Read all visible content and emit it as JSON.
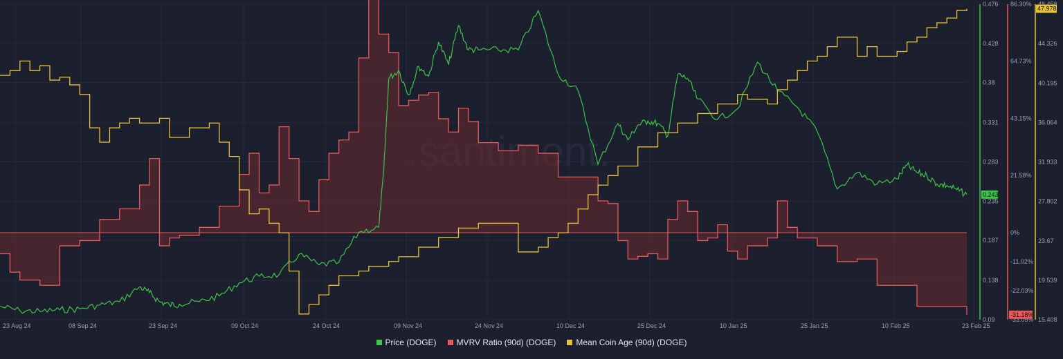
{
  "chart_data": {
    "type": "line",
    "watermark": ".santiment.",
    "x_ticks": [
      "23 Aug 24",
      "08 Sep 24",
      "23 Sep 24",
      "09 Oct 24",
      "24 Oct 24",
      "09 Nov 24",
      "24 Nov 24",
      "10 Dec 24",
      "25 Dec 24",
      "10 Jan 25",
      "25 Jan 25",
      "10 Feb 25",
      "23 Feb 25"
    ],
    "price_axis": {
      "ticks": [
        "0.476",
        "0.428",
        "0.38",
        "0.331",
        "0.283",
        "0.235",
        "0.187",
        "0.138",
        "0.09"
      ],
      "ylim": [
        0.09,
        0.476
      ],
      "current": "0.243",
      "color": "#3ec44a"
    },
    "mvrv_axis": {
      "ticks": [
        "86.30%",
        "64.73%",
        "43.15%",
        "21.58%",
        "0%",
        "-11.02%",
        "-22.03%",
        "-33.05%"
      ],
      "current": "-31.18%",
      "color": "#e85a5a"
    },
    "age_axis": {
      "ticks": [
        "48.458",
        "44.326",
        "40.195",
        "36.064",
        "31.933",
        "27.802",
        "23.67",
        "19.539",
        "15.408"
      ],
      "ylim": [
        15.408,
        48.458
      ],
      "current": "47.978",
      "color": "#e8c23a"
    },
    "series": [
      {
        "name": "Price (DOGE)",
        "color": "#3ec44a",
        "axis": "price",
        "x": [
          0,
          4,
          8,
          12,
          16,
          20,
          24,
          28,
          30,
          32,
          34,
          36,
          40,
          44,
          48,
          52,
          56,
          60,
          64,
          68,
          72,
          76,
          77,
          78,
          80,
          82,
          84,
          86,
          88,
          90,
          92,
          94,
          96,
          100,
          104,
          108,
          112,
          116,
          120,
          124,
          126,
          128,
          130,
          132,
          134,
          136,
          138,
          140,
          144,
          148,
          152,
          156,
          160,
          164,
          168,
          172,
          176,
          180,
          182,
          184,
          186,
          188,
          190,
          192,
          194
        ],
        "values": [
          0.106,
          0.101,
          0.1,
          0.102,
          0.103,
          0.108,
          0.112,
          0.13,
          0.123,
          0.112,
          0.108,
          0.109,
          0.112,
          0.119,
          0.135,
          0.143,
          0.145,
          0.17,
          0.157,
          0.16,
          0.197,
          0.203,
          0.272,
          0.385,
          0.395,
          0.365,
          0.4,
          0.388,
          0.43,
          0.402,
          0.45,
          0.42,
          0.42,
          0.42,
          0.42,
          0.468,
          0.39,
          0.37,
          0.28,
          0.33,
          0.31,
          0.328,
          0.333,
          0.33,
          0.315,
          0.39,
          0.385,
          0.36,
          0.335,
          0.348,
          0.405,
          0.37,
          0.35,
          0.32,
          0.25,
          0.27,
          0.256,
          0.262,
          0.279,
          0.27,
          0.266,
          0.256,
          0.254,
          0.249,
          0.243
        ]
      },
      {
        "name": "MVRV Ratio (90d) (DOGE)",
        "color": "#e85a5a",
        "axis": "mvrv",
        "x": [
          0,
          2,
          4,
          8,
          12,
          16,
          20,
          24,
          28,
          30,
          32,
          34,
          36,
          40,
          44,
          48,
          50,
          52,
          54,
          56,
          58,
          60,
          62,
          64,
          66,
          68,
          70,
          72,
          74,
          76,
          78,
          80,
          82,
          84,
          86,
          88,
          90,
          92,
          94,
          96,
          100,
          104,
          108,
          112,
          116,
          120,
          122,
          124,
          126,
          128,
          130,
          132,
          134,
          136,
          138,
          140,
          142,
          144,
          146,
          148,
          150,
          152,
          154,
          156,
          158,
          160,
          164,
          168,
          172,
          176,
          180,
          184,
          188,
          192,
          194
        ],
        "values": [
          -8,
          -15,
          -18,
          -20,
          -5,
          -3,
          5,
          9,
          18,
          28,
          -5,
          -2,
          -1,
          2,
          10,
          22,
          30,
          15,
          18,
          40,
          28,
          12,
          8,
          20,
          30,
          35,
          38,
          66,
          90,
          75,
          68,
          48,
          50,
          52,
          53,
          43,
          38,
          47,
          42,
          34,
          31,
          33,
          30,
          21,
          21,
          12,
          11,
          -3,
          -10,
          -9,
          -8,
          -10,
          5,
          12,
          8,
          -3,
          -2,
          3,
          -7,
          -10,
          -5,
          -5,
          -2,
          12,
          2,
          -2,
          -5,
          -11,
          -10,
          -20,
          -20,
          -28,
          -28,
          -28,
          -31.18
        ]
      },
      {
        "name": "Mean Coin Age (90d) (DOGE)",
        "color": "#e8c23a",
        "axis": "age",
        "x": [
          0,
          2,
          4,
          6,
          8,
          10,
          12,
          14,
          16,
          18,
          20,
          22,
          24,
          26,
          28,
          30,
          32,
          34,
          36,
          38,
          40,
          42,
          44,
          46,
          48,
          50,
          52,
          54,
          56,
          58,
          60,
          62,
          64,
          66,
          68,
          70,
          72,
          74,
          76,
          78,
          80,
          84,
          88,
          92,
          96,
          100,
          104,
          108,
          110,
          112,
          114,
          116,
          118,
          120,
          122,
          124,
          128,
          132,
          136,
          140,
          144,
          148,
          150,
          152,
          154,
          156,
          158,
          160,
          162,
          164,
          166,
          168,
          170,
          172,
          174,
          176,
          178,
          180,
          182,
          184,
          186,
          188,
          190,
          192,
          194
        ],
        "values": [
          41.0,
          41.5,
          42.5,
          41.5,
          42.0,
          40.5,
          40.8,
          40.0,
          39.0,
          35.5,
          34.0,
          35.5,
          36.0,
          36.5,
          36.0,
          36.0,
          36.5,
          34.5,
          34.5,
          35.5,
          35.5,
          36.0,
          34.0,
          32.5,
          29.0,
          26.5,
          27.0,
          25.5,
          24.5,
          20.5,
          16.0,
          17.0,
          18.0,
          19.0,
          20.0,
          20.0,
          20.5,
          21.0,
          21.0,
          21.5,
          22.0,
          23.0,
          24.0,
          25.0,
          25.5,
          25.5,
          22.5,
          23.0,
          24.0,
          24.5,
          25.5,
          27.0,
          28.5,
          29.5,
          30.5,
          31.5,
          33.5,
          35.0,
          36.0,
          37.0,
          38.0,
          39.0,
          38.5,
          38.5,
          38.0,
          39.5,
          40.5,
          41.5,
          42.5,
          43.0,
          44.0,
          45.0,
          45.0,
          43.0,
          44.0,
          43.0,
          43.0,
          43.5,
          44.5,
          45.0,
          46.0,
          46.5,
          47.0,
          47.8,
          47.978
        ]
      }
    ],
    "legend": [
      "Price (DOGE)",
      "MVRV Ratio (90d) (DOGE)",
      "Mean Coin Age (90d) (DOGE)"
    ],
    "legend_placement": "bottom-center",
    "grid": true
  }
}
